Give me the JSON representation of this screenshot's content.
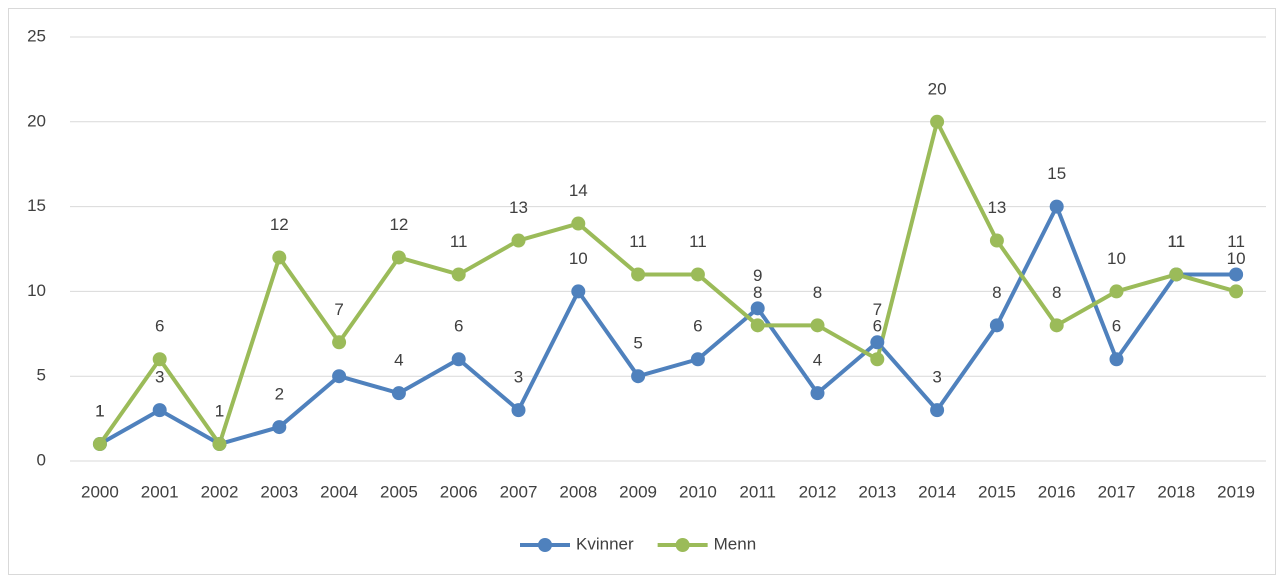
{
  "chart_data": {
    "type": "line",
    "categories": [
      "2000",
      "2001",
      "2002",
      "2003",
      "2004",
      "2005",
      "2006",
      "2007",
      "2008",
      "2009",
      "2010",
      "2011",
      "2012",
      "2013",
      "2014",
      "2015",
      "2016",
      "2017",
      "2018",
      "2019"
    ],
    "series": [
      {
        "name": "Kvinner",
        "color": "#4f81bd",
        "values": [
          1,
          3,
          1,
          2,
          5,
          4,
          6,
          3,
          10,
          5,
          6,
          9,
          4,
          7,
          3,
          8,
          15,
          6,
          11,
          11
        ]
      },
      {
        "name": "Menn",
        "color": "#9bbb59",
        "values": [
          1,
          6,
          1,
          12,
          7,
          12,
          11,
          13,
          14,
          11,
          11,
          8,
          8,
          6,
          20,
          13,
          8,
          10,
          11,
          10
        ]
      }
    ],
    "ylim": [
      0,
      25
    ],
    "yticks": [
      0,
      5,
      10,
      15,
      20,
      25
    ],
    "grid": true,
    "legend": "bottom"
  }
}
